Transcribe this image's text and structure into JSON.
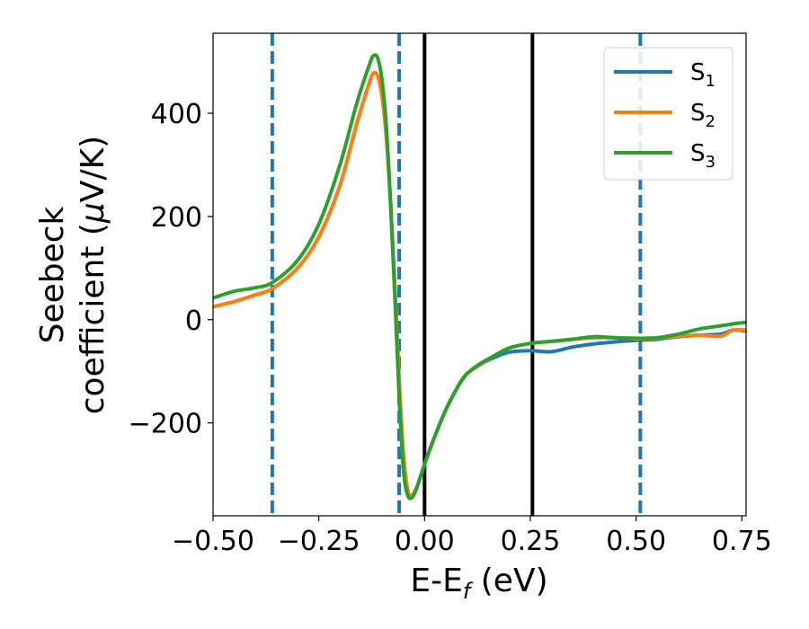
{
  "chart_data": {
    "type": "line",
    "xlabel": "E-E",
    "xlabel_sub": "f",
    "xlabel_unit": " (eV)",
    "ylabel_line1": "Seebeck",
    "ylabel_line2": "coefficient  (",
    "ylabel_mu": "μ",
    "ylabel_unit": "V/K)",
    "xlim": [
      -0.5,
      0.76
    ],
    "ylim": [
      -380,
      555
    ],
    "x_ticks": [
      -0.5,
      -0.25,
      0.0,
      0.25,
      0.5,
      0.75
    ],
    "x_tick_labels": [
      "−0.50",
      "−0.25",
      "0.00",
      "0.25",
      "0.50",
      "0.75"
    ],
    "y_ticks": [
      -200,
      0,
      200,
      400
    ],
    "y_tick_labels": [
      "−200",
      "0",
      "200",
      "400"
    ],
    "legend_position": "top-right",
    "vertical_lines": [
      {
        "x": -0.36,
        "style": "dashed",
        "color": "#1f77b4"
      },
      {
        "x": -0.06,
        "style": "dashed",
        "color": "#1f77b4"
      },
      {
        "x": 0.51,
        "style": "dashed",
        "color": "#1f77b4"
      },
      {
        "x": 0.0,
        "style": "solid",
        "color": "#000000"
      },
      {
        "x": 0.255,
        "style": "solid",
        "color": "#000000"
      }
    ],
    "series": [
      {
        "name": "S",
        "sub": "1",
        "color": "#1f77b4",
        "x": [
          -0.5,
          -0.45,
          -0.4,
          -0.36,
          -0.3,
          -0.25,
          -0.2,
          -0.16,
          -0.13,
          -0.12,
          -0.11,
          -0.1,
          -0.09,
          -0.08,
          -0.07,
          -0.06,
          -0.05,
          -0.04,
          -0.03,
          -0.02,
          -0.01,
          0.0,
          0.02,
          0.05,
          0.08,
          0.1,
          0.13,
          0.16,
          0.2,
          0.25,
          0.3,
          0.35,
          0.4,
          0.45,
          0.5,
          0.55,
          0.6,
          0.65,
          0.7,
          0.73,
          0.76
        ],
        "values": [
          25,
          35,
          48,
          60,
          100,
          160,
          260,
          380,
          460,
          478,
          470,
          430,
          350,
          220,
          60,
          -120,
          -260,
          -330,
          -340,
          -328,
          -305,
          -280,
          -235,
          -175,
          -128,
          -105,
          -88,
          -75,
          -63,
          -60,
          -62,
          -53,
          -47,
          -43,
          -40,
          -38,
          -33,
          -30,
          -28,
          -20,
          -22
        ]
      },
      {
        "name": "S",
        "sub": "2",
        "color": "#ff7f0e",
        "x": [
          -0.5,
          -0.45,
          -0.4,
          -0.36,
          -0.3,
          -0.25,
          -0.2,
          -0.16,
          -0.13,
          -0.12,
          -0.11,
          -0.1,
          -0.09,
          -0.08,
          -0.07,
          -0.06,
          -0.05,
          -0.04,
          -0.03,
          -0.02,
          -0.01,
          0.0,
          0.02,
          0.05,
          0.08,
          0.1,
          0.13,
          0.16,
          0.2,
          0.25,
          0.3,
          0.35,
          0.4,
          0.45,
          0.5,
          0.55,
          0.6,
          0.65,
          0.7,
          0.73,
          0.76
        ],
        "values": [
          25,
          35,
          48,
          60,
          100,
          160,
          260,
          380,
          460,
          478,
          470,
          430,
          350,
          220,
          60,
          -120,
          -260,
          -330,
          -340,
          -328,
          -305,
          -280,
          -235,
          -175,
          -128,
          -105,
          -88,
          -72,
          -55,
          -46,
          -42,
          -38,
          -35,
          -35,
          -37,
          -36,
          -32,
          -30,
          -32,
          -20,
          -20
        ]
      },
      {
        "name": "S",
        "sub": "3",
        "color": "#2ca02c",
        "x": [
          -0.5,
          -0.45,
          -0.4,
          -0.36,
          -0.3,
          -0.25,
          -0.2,
          -0.16,
          -0.13,
          -0.12,
          -0.11,
          -0.1,
          -0.09,
          -0.08,
          -0.07,
          -0.06,
          -0.05,
          -0.04,
          -0.03,
          -0.02,
          -0.01,
          0.0,
          0.02,
          0.05,
          0.08,
          0.1,
          0.13,
          0.16,
          0.2,
          0.25,
          0.3,
          0.35,
          0.4,
          0.45,
          0.5,
          0.55,
          0.6,
          0.65,
          0.7,
          0.73,
          0.76
        ],
        "values": [
          42,
          55,
          62,
          72,
          115,
          185,
          300,
          420,
          495,
          512,
          505,
          460,
          370,
          220,
          40,
          -150,
          -290,
          -340,
          -345,
          -330,
          -305,
          -280,
          -235,
          -175,
          -128,
          -105,
          -86,
          -72,
          -55,
          -46,
          -42,
          -38,
          -33,
          -35,
          -36,
          -35,
          -28,
          -18,
          -12,
          -8,
          -5
        ]
      }
    ]
  }
}
